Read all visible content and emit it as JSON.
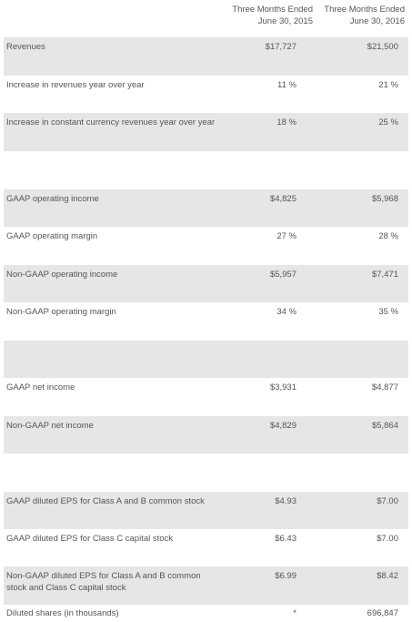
{
  "headers": {
    "col1": {
      "line1": "Three Months Ended",
      "line2": "June 30, 2015"
    },
    "col2": {
      "line1": "Three Months Ended",
      "line2": "June 30, 2016"
    }
  },
  "rows": [
    {
      "label": "Revenues",
      "v1": "$17,727",
      "v2": "$21,500"
    },
    {
      "label": "Increase in revenues year over year",
      "v1": "11 %",
      "v2": "21 %"
    },
    {
      "label": "Increase in constant currency revenues year over year",
      "v1": "18 %",
      "v2": "25 %"
    },
    {
      "label": "",
      "v1": "",
      "v2": ""
    },
    {
      "label": "GAAP operating income",
      "v1": "$4,825",
      "v2": "$5,968"
    },
    {
      "label": "GAAP operating margin",
      "v1": "27 %",
      "v2": "28 %"
    },
    {
      "label": "Non-GAAP operating income",
      "v1": "$5,957",
      "v2": "$7,471"
    },
    {
      "label": "Non-GAAP operating margin",
      "v1": "34 %",
      "v2": "35 %"
    },
    {
      "label": "",
      "v1": "",
      "v2": ""
    },
    {
      "label": "GAAP net income",
      "v1": "$3,931",
      "v2": "$4,877"
    },
    {
      "label": "Non-GAAP net income",
      "v1": "$4,829",
      "v2": "$5,864"
    },
    {
      "label": "",
      "v1": "",
      "v2": ""
    },
    {
      "label": "GAAP diluted EPS for Class A and B common stock",
      "v1": "$4.93",
      "v2": "$7.00"
    },
    {
      "label": "GAAP diluted EPS for Class C capital stock",
      "v1": "$6.43",
      "v2": "$7.00"
    },
    {
      "label": "Non-GAAP diluted EPS for Class A and B common stock and Class C capital stock",
      "v1": "$6.99",
      "v2": "$8.42"
    },
    {
      "label": "Diluted shares (in thousands)",
      "v1": "*",
      "v2": "696,847"
    }
  ]
}
